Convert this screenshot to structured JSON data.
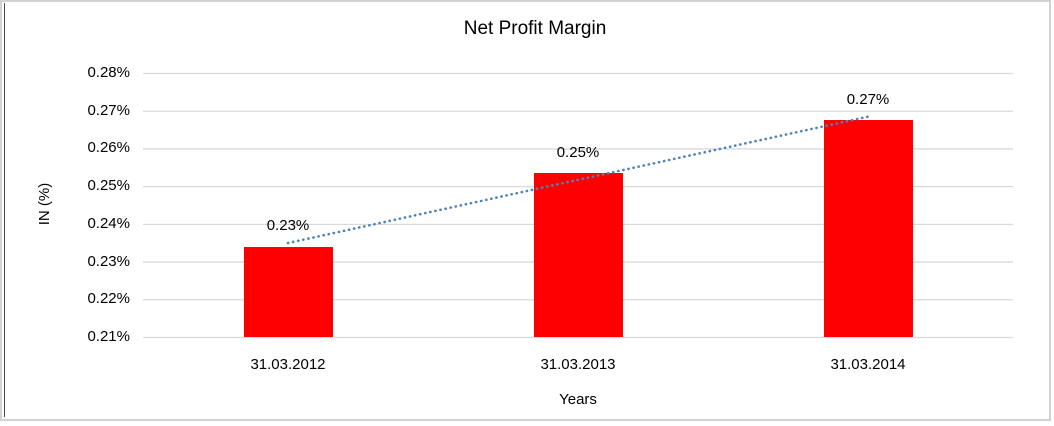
{
  "chart_data": {
    "type": "bar",
    "title": "Net Profit Margin",
    "xlabel": "Years",
    "ylabel": "IN (%)",
    "categories": [
      "31.03.2012",
      "31.03.2013",
      "31.03.2014"
    ],
    "values": [
      0.234,
      0.2535,
      0.2675
    ],
    "data_labels": [
      "0.23%",
      "0.25%",
      "0.27%"
    ],
    "y_ticks": [
      "0.28%",
      "0.27%",
      "0.26%",
      "0.25%",
      "0.24%",
      "0.23%",
      "0.22%",
      "0.21%"
    ],
    "y_tick_values": [
      0.28,
      0.27,
      0.26,
      0.25,
      0.24,
      0.23,
      0.22,
      0.21
    ],
    "ylim": [
      0.21,
      0.28
    ],
    "grid": "horizontal",
    "legend": "none",
    "trendline": {
      "type": "linear",
      "style": "dotted"
    },
    "colors": {
      "bar": "#ff0000",
      "trendline": "#4f81bd",
      "gridline": "#d9d9d9",
      "text": "#000000",
      "frame": "#d2d2d2",
      "frame_left_line": "#4d4d4d",
      "background": "#ffffff"
    }
  }
}
